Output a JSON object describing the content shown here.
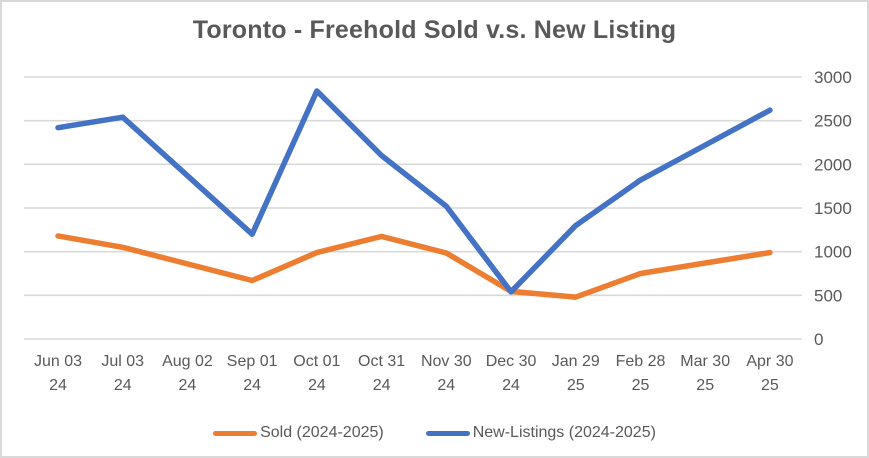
{
  "chart_data": {
    "type": "line",
    "title": "Toronto - Freehold Sold v.s. New Listing",
    "categories": [
      "Jun 03 24",
      "Jul 03 24",
      "Aug 02 24",
      "Sep 01 24",
      "Oct 01 24",
      "Oct 31 24",
      "Nov 30 24",
      "Dec 30 24",
      "Jan 29 25",
      "Feb 28 25",
      "Mar 30 25",
      "Apr 30 25"
    ],
    "series": [
      {
        "name": "Sold (2024-2025)",
        "color": "#ED7D31",
        "values": [
          1180,
          1050,
          860,
          670,
          990,
          1175,
          985,
          545,
          480,
          750,
          870,
          990
        ]
      },
      {
        "name": "New-Listings (2024-2025)",
        "color": "#4472C4",
        "values": [
          2420,
          2540,
          1870,
          1200,
          2840,
          2100,
          1520,
          540,
          1300,
          1820,
          2220,
          2620
        ]
      }
    ],
    "ylim": [
      0,
      3000
    ],
    "yticks": [
      0,
      500,
      1000,
      1500,
      2000,
      2500,
      3000
    ],
    "y_axis_side": "right",
    "grid": "horizontal",
    "legend_position": "bottom"
  },
  "colors": {
    "gridline": "#D9D9D9",
    "axis_text": "#595959",
    "title_text": "#595959",
    "background": "#FFFFFF",
    "border": "#D9D9D9"
  }
}
